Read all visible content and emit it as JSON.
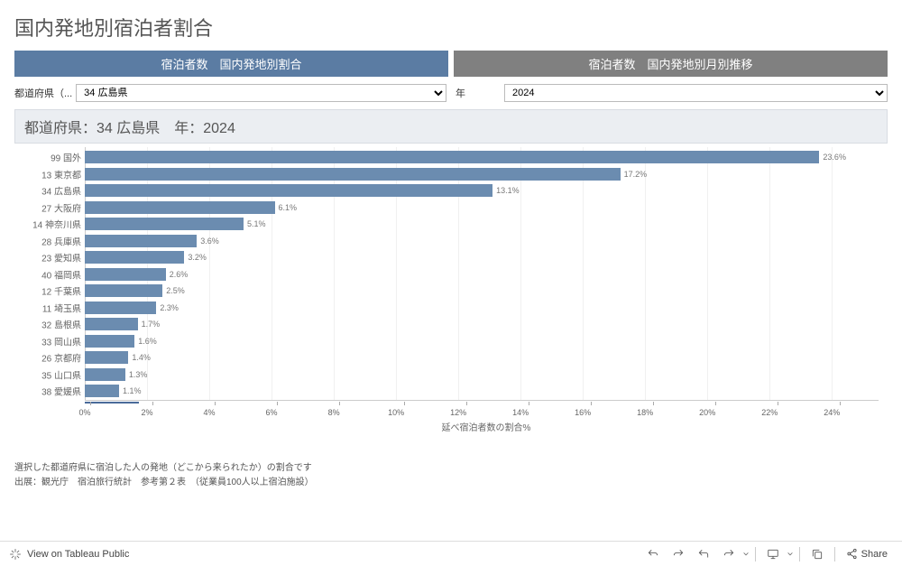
{
  "title": "国内発地別宿泊者割合",
  "tabs": {
    "active": "宿泊者数　国内発地別割合",
    "inactive": "宿泊者数　国内発地別月別推移"
  },
  "filters": {
    "prefecture_label": "都道府県（...",
    "prefecture_value": "34 広島県",
    "year_label": "年",
    "year_value": "2024"
  },
  "subtitle": "都道府県：34 広島県　年：2024",
  "chart": {
    "type": "bar",
    "bar_color": "#6b8cb0",
    "background_color": "#ffffff",
    "grid_color": "#f0f0f0",
    "text_color": "#666666",
    "x_title": "延べ宿泊者数の割合%",
    "x_max": 25.5,
    "x_ticks": [
      0,
      2,
      4,
      6,
      8,
      10,
      12,
      14,
      16,
      18,
      20,
      22,
      24
    ],
    "x_tick_labels": [
      "0%",
      "2%",
      "4%",
      "6%",
      "8%",
      "10%",
      "12%",
      "14%",
      "16%",
      "18%",
      "20%",
      "22%",
      "24%"
    ],
    "row_h": 18.5,
    "bars": [
      {
        "label": "99 国外",
        "value": 23.6,
        "text": "23.6%"
      },
      {
        "label": "13 東京都",
        "value": 17.2,
        "text": "17.2%"
      },
      {
        "label": "34 広島県",
        "value": 13.1,
        "text": "13.1%"
      },
      {
        "label": "27 大阪府",
        "value": 6.1,
        "text": "6.1%"
      },
      {
        "label": "14 神奈川県",
        "value": 5.1,
        "text": "5.1%"
      },
      {
        "label": "28 兵庫県",
        "value": 3.6,
        "text": "3.6%"
      },
      {
        "label": "23 愛知県",
        "value": 3.2,
        "text": "3.2%"
      },
      {
        "label": "40 福岡県",
        "value": 2.6,
        "text": "2.6%"
      },
      {
        "label": "12 千葉県",
        "value": 2.5,
        "text": "2.5%"
      },
      {
        "label": "11 埼玉県",
        "value": 2.3,
        "text": "2.3%"
      },
      {
        "label": "32 島根県",
        "value": 1.7,
        "text": "1.7%"
      },
      {
        "label": "33 岡山県",
        "value": 1.6,
        "text": "1.6%"
      },
      {
        "label": "26 京都府",
        "value": 1.4,
        "text": "1.4%"
      },
      {
        "label": "35 山口県",
        "value": 1.3,
        "text": "1.3%"
      },
      {
        "label": "38 愛媛県",
        "value": 1.1,
        "text": "1.1%"
      }
    ]
  },
  "footnotes": {
    "line1": "選択した都道府県に宿泊した人の発地（どこから来られたか）の割合です",
    "line2": "出展：観光庁　宿泊旅行統計　参考第２表　（従業員100人以上宿泊施設）"
  },
  "toolbar": {
    "view_label": "View on Tableau Public",
    "share_label": "Share"
  }
}
